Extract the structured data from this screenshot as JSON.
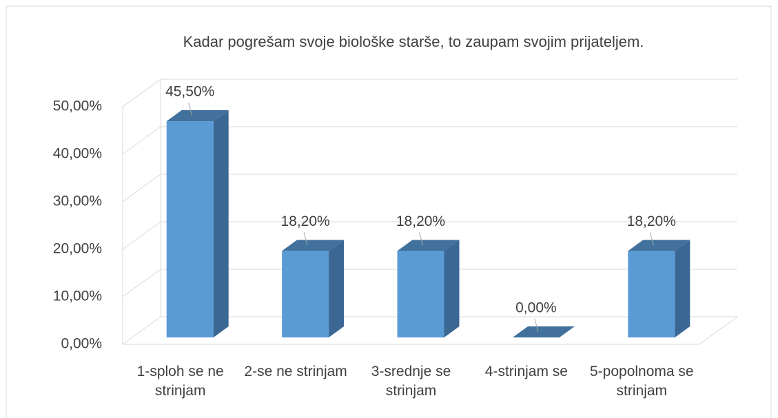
{
  "chart_data": {
    "type": "bar3d",
    "title": "Kadar pogrešam svoje biološke starše, to zaupam svojim prijateljem.",
    "categories": [
      "1-sploh se ne strinjam",
      "2-se ne strinjam",
      "3-srednje se strinjam",
      "4-strinjam se",
      "5-popolnoma se strinjam"
    ],
    "values": [
      45.5,
      18.2,
      18.2,
      0,
      18.2
    ],
    "value_labels": [
      "45,50%",
      "18,20%",
      "18,20%",
      "0,00%",
      "18,20%"
    ],
    "color": "#5b9bd5",
    "ylim": [
      0,
      50
    ],
    "yticks": [
      {
        "value": 0,
        "label": "0,00%"
      },
      {
        "value": 10,
        "label": "10,00%"
      },
      {
        "value": 20,
        "label": "20,00%"
      },
      {
        "value": 30,
        "label": "30,00%"
      },
      {
        "value": 40,
        "label": "40,00%"
      },
      {
        "value": 50,
        "label": "50,00%"
      }
    ],
    "grid": true
  }
}
